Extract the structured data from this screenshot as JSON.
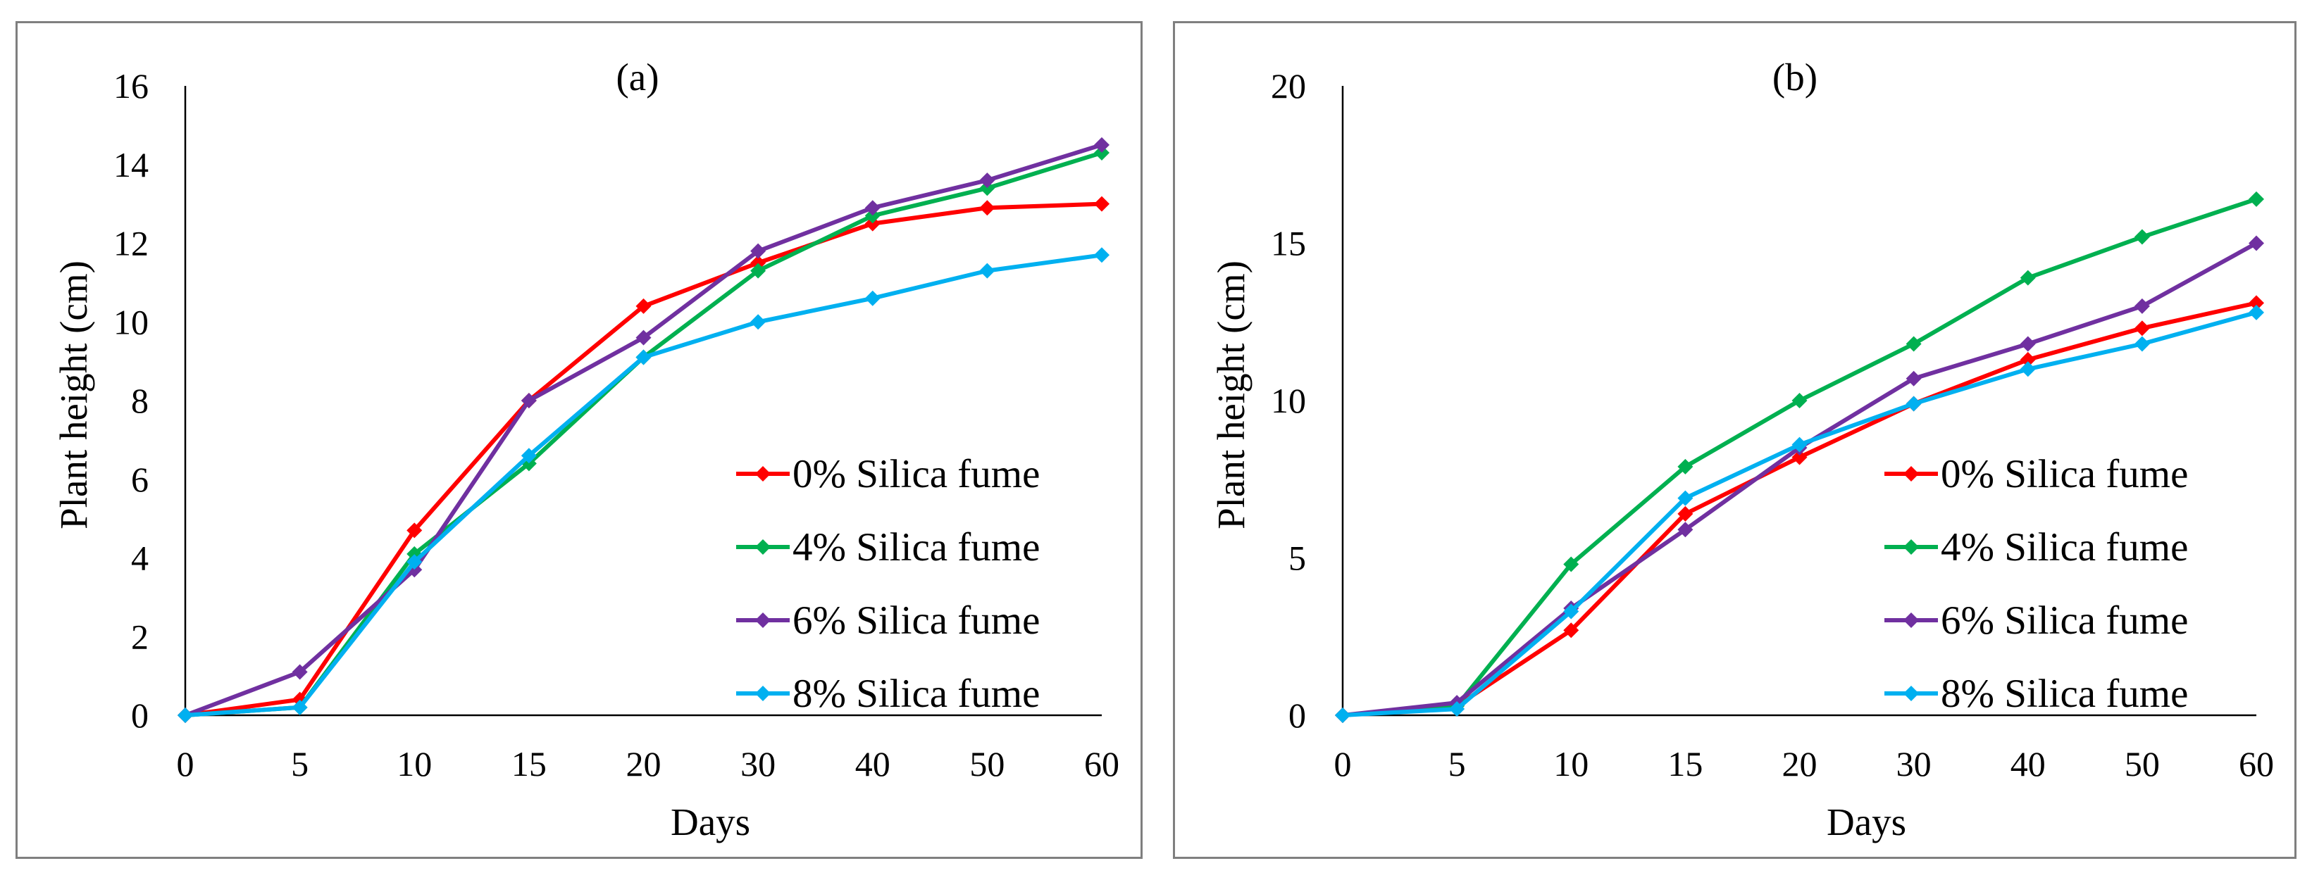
{
  "chart_data": [
    {
      "type": "line",
      "title": "(a)",
      "xlabel": "Days",
      "ylabel": "Plant height (cm)",
      "categories": [
        "0",
        "5",
        "10",
        "15",
        "20",
        "30",
        "40",
        "50",
        "60"
      ],
      "ylim": [
        0,
        16
      ],
      "yticks": [
        "0",
        "2",
        "4",
        "6",
        "8",
        "10",
        "12",
        "14",
        "16"
      ],
      "legend_position": "right",
      "series": [
        {
          "name": "0% Silica fume",
          "color": "#ff0000",
          "values": [
            0,
            0.4,
            4.7,
            8.0,
            10.4,
            11.5,
            12.5,
            12.9,
            13.0
          ]
        },
        {
          "name": "4% Silica fume",
          "color": "#00b050",
          "values": [
            0,
            0.2,
            4.1,
            6.4,
            9.1,
            11.3,
            12.7,
            13.4,
            14.3
          ]
        },
        {
          "name": "6% Silica fume",
          "color": "#7030a0",
          "values": [
            0,
            1.1,
            3.7,
            8.0,
            9.6,
            11.8,
            12.9,
            13.6,
            14.5
          ]
        },
        {
          "name": "8% Silica fume",
          "color": "#00b0f0",
          "values": [
            0,
            0.2,
            3.9,
            6.6,
            9.1,
            10.0,
            10.6,
            11.3,
            11.7
          ]
        }
      ]
    },
    {
      "type": "line",
      "title": "(b)",
      "xlabel": "Days",
      "ylabel": "Plant height (cm)",
      "categories": [
        "0",
        "5",
        "10",
        "15",
        "20",
        "30",
        "40",
        "50",
        "60"
      ],
      "ylim": [
        0,
        20
      ],
      "yticks": [
        "0",
        "5",
        "10",
        "15",
        "20"
      ],
      "legend_position": "right",
      "series": [
        {
          "name": "0% Silica fume",
          "color": "#ff0000",
          "values": [
            0,
            0.3,
            2.7,
            6.4,
            8.2,
            9.9,
            11.3,
            12.3,
            13.1
          ]
        },
        {
          "name": "4% Silica fume",
          "color": "#00b050",
          "values": [
            0,
            0.3,
            4.8,
            7.9,
            10.0,
            11.8,
            13.9,
            15.2,
            16.4
          ]
        },
        {
          "name": "6% Silica fume",
          "color": "#7030a0",
          "values": [
            0,
            0.4,
            3.4,
            5.9,
            8.5,
            10.7,
            11.8,
            13.0,
            15.0
          ]
        },
        {
          "name": "8% Silica fume",
          "color": "#00b0f0",
          "values": [
            0,
            0.2,
            3.3,
            6.9,
            8.6,
            9.9,
            11.0,
            11.8,
            12.8
          ]
        }
      ]
    }
  ]
}
